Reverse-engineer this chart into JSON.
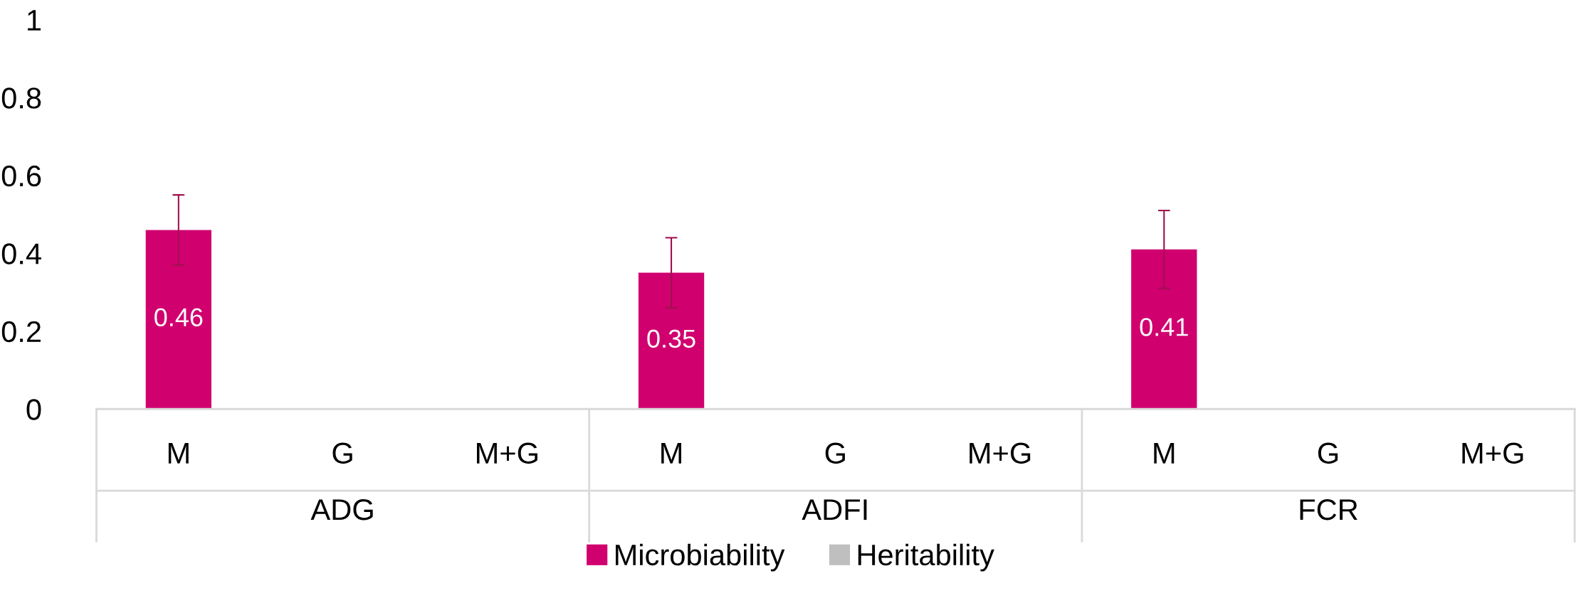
{
  "chart_data": {
    "type": "bar",
    "categories": [
      "M",
      "G",
      "M+G",
      "M",
      "G",
      "M+G",
      "M",
      "G",
      "M+G"
    ],
    "series": [
      {
        "name": "Microbiability",
        "color": "#d0006f",
        "values": [
          0.46,
          null,
          0,
          0.35,
          null,
          0,
          0.41,
          null,
          0
        ],
        "errors": [
          0.09,
          null,
          null,
          0.09,
          null,
          null,
          0.1,
          null,
          null
        ],
        "value_labels": [
          "0.46",
          null,
          null,
          "0.35",
          null,
          null,
          "0.41",
          null,
          null
        ]
      },
      {
        "name": "Heritability",
        "color": "#bfbfbf",
        "values": [
          null,
          0,
          null,
          null,
          0,
          null,
          null,
          0,
          null
        ]
      }
    ],
    "annotations": [
      "ADG",
      "ADFI",
      "FCR"
    ],
    "ylim": [
      0,
      1
    ],
    "yticks": [
      0,
      0.2,
      0.4,
      0.6,
      0.8,
      1
    ],
    "grid": false,
    "legend": "bottom"
  }
}
